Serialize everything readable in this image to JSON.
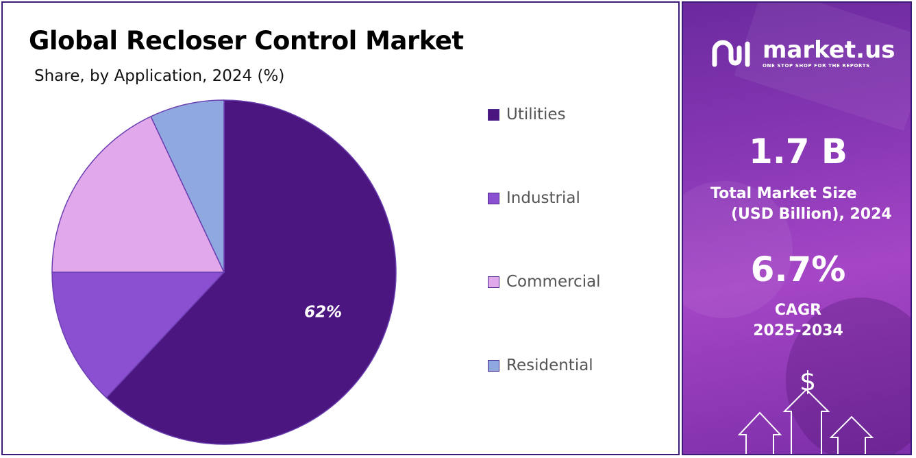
{
  "title": "Global Recloser Control Market",
  "subtitle": "Share, by Application, 2024 (%)",
  "chart_data": {
    "type": "pie",
    "categories": [
      "Utilities",
      "Industrial",
      "Commercial",
      "Residential"
    ],
    "values": [
      62,
      13,
      18,
      7
    ],
    "colors": [
      "#4c1680",
      "#8b4fd2",
      "#e2a8ec",
      "#8fa8e0"
    ],
    "data_labels": [
      "62%",
      "",
      "",
      ""
    ],
    "legend_position": "right"
  },
  "side_panel": {
    "logo_name": "market.us",
    "logo_tagline": "ONE STOP SHOP FOR THE REPORTS",
    "market_size_value": "1.7 B",
    "market_size_label_1": "Total Market Size",
    "market_size_label_2": "(USD Billion), 2024",
    "cagr_value": "6.7%",
    "cagr_label_1": "CAGR",
    "cagr_label_2": "2025-2034",
    "currency_symbol": "$"
  }
}
